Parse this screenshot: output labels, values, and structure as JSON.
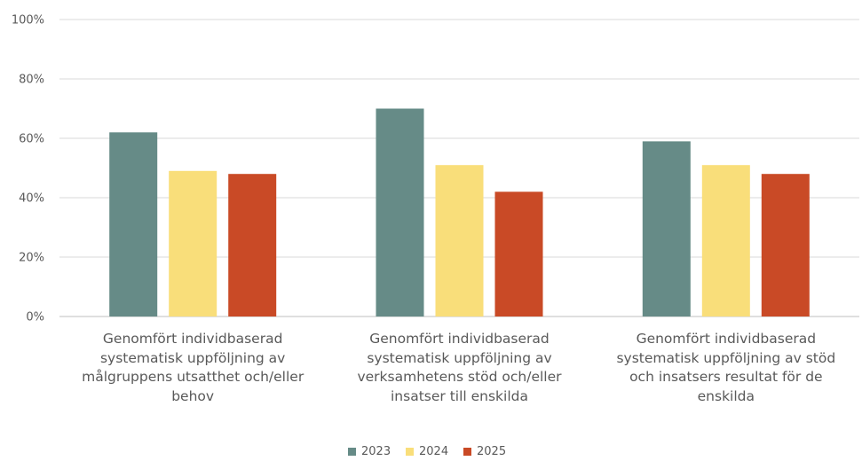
{
  "chart_data": {
    "type": "bar",
    "categories": [
      "Genomfört individbaserad systematisk uppföljning av målgruppens utsatthet och/eller behov",
      "Genomfört individbaserad systematisk uppföljning av verksamhetens stöd och/eller insatser till enskilda",
      "Genomfört individbaserad systematisk uppföljning av stöd och insatsers resultat för de enskilda"
    ],
    "category_lines": [
      [
        "Genomfört individbaserad",
        "systematisk uppföljning av",
        "målgruppens utsatthet och/eller",
        "behov"
      ],
      [
        "Genomfört individbaserad",
        "systematisk uppföljning av",
        "verksamhetens stöd och/eller",
        "insatser till enskilda"
      ],
      [
        "Genomfört individbaserad",
        "systematisk uppföljning av stöd",
        "och insatsers resultat för de",
        "enskilda"
      ]
    ],
    "series": [
      {
        "name": "2023",
        "color": "#668b87",
        "values": [
          62,
          70,
          59
        ]
      },
      {
        "name": "2024",
        "color": "#f9de7a",
        "values": [
          49,
          51,
          51
        ]
      },
      {
        "name": "2025",
        "color": "#c94a26",
        "values": [
          48,
          42,
          48
        ]
      }
    ],
    "ylim": [
      0,
      100
    ],
    "yticks": [
      "0%",
      "20%",
      "40%",
      "60%",
      "80%",
      "100%"
    ],
    "ytick_values": [
      0,
      20,
      40,
      60,
      80,
      100
    ],
    "grid": true,
    "legend_position": "bottom"
  }
}
